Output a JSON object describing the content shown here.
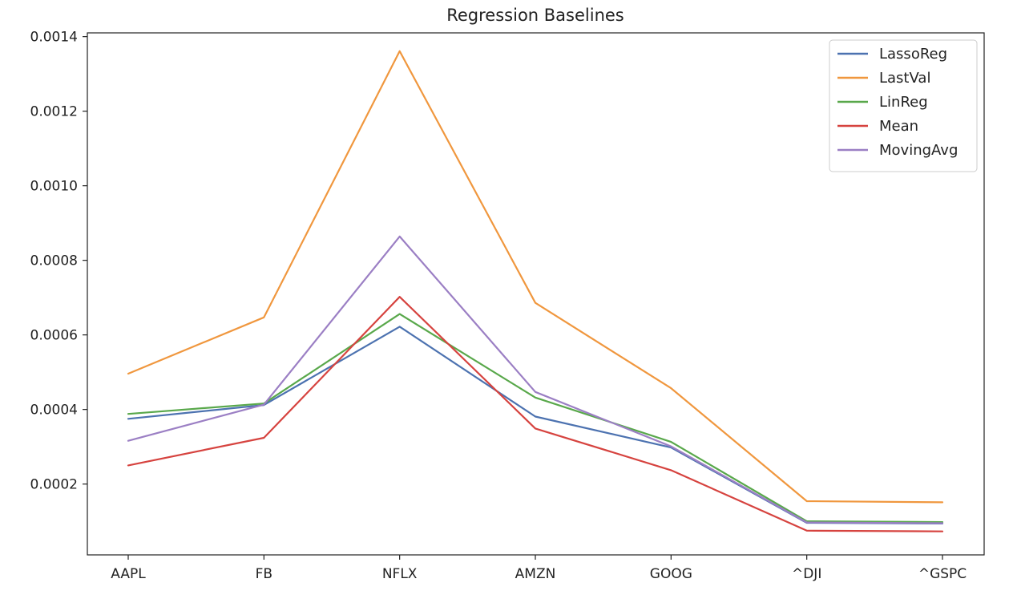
{
  "chart_data": {
    "type": "line",
    "title": "Regression Baselines",
    "xlabel": "",
    "ylabel": "",
    "categories": [
      "AAPL",
      "FB",
      "NFLX",
      "AMZN",
      "GOOG",
      "^DJI",
      "^GSPC"
    ],
    "ylim": [
      1e-05,
      0.00141
    ],
    "yticks": [
      0.0002,
      0.0004,
      0.0006,
      0.0008,
      0.001,
      0.0012,
      0.0014
    ],
    "ytick_labels": [
      "0.0002",
      "0.0004",
      "0.0006",
      "0.0008",
      "0.0010",
      "0.0012",
      "0.0014"
    ],
    "grid": false,
    "legend_position": "top-right",
    "series": [
      {
        "name": "LassoReg",
        "color": "#4c72b0",
        "values": [
          0.000375,
          0.000412,
          0.000622,
          0.000381,
          0.000298,
          9.6e-05,
          9.4e-05
        ]
      },
      {
        "name": "LastVal",
        "color": "#f0973e",
        "values": [
          0.000496,
          0.000647,
          0.001361,
          0.000686,
          0.000457,
          0.000154,
          0.000151
        ]
      },
      {
        "name": "LinReg",
        "color": "#59a84b",
        "values": [
          0.000388,
          0.000416,
          0.000656,
          0.000432,
          0.000313,
          0.0001,
          9.8e-05
        ]
      },
      {
        "name": "Mean",
        "color": "#d6433f",
        "values": [
          0.00025,
          0.000324,
          0.000702,
          0.000349,
          0.000237,
          7.5e-05,
          7.3e-05
        ]
      },
      {
        "name": "MovingAvg",
        "color": "#9b7fc4",
        "values": [
          0.000316,
          0.000413,
          0.000864,
          0.000447,
          0.000301,
          9.7e-05,
          9.5e-05
        ]
      }
    ]
  }
}
